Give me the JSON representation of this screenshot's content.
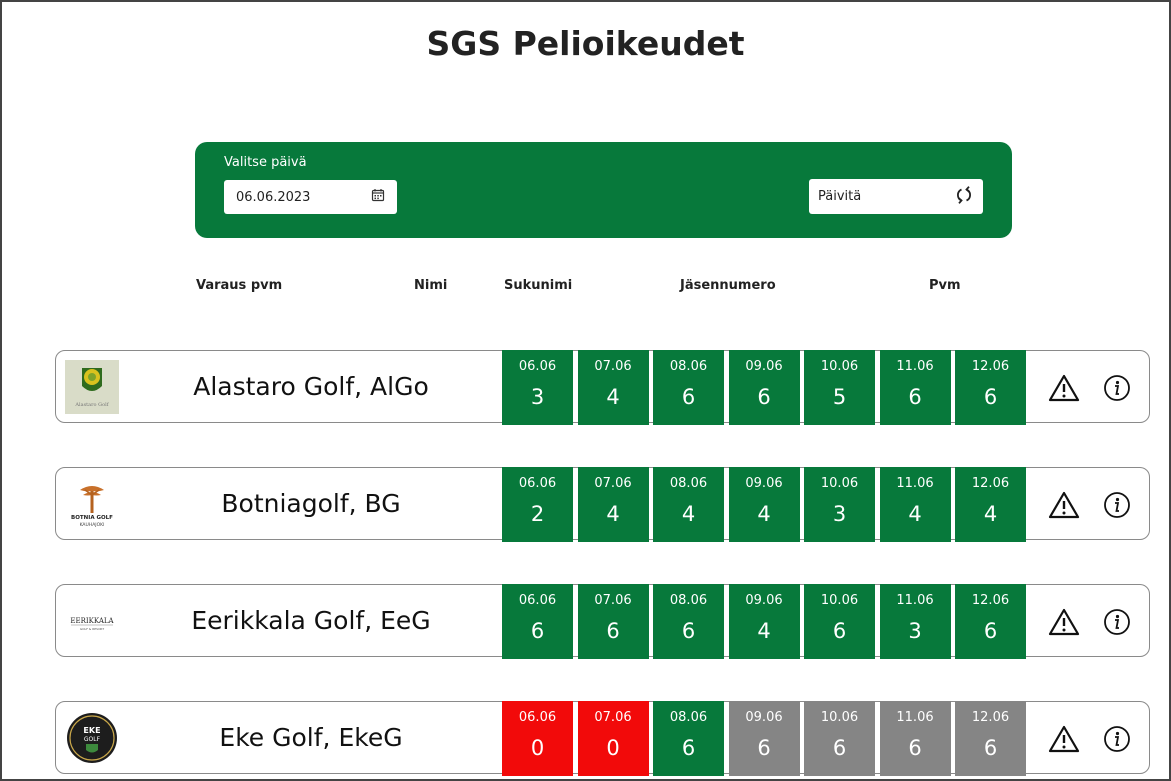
{
  "page": {
    "title": "SGS Pelioikeudet"
  },
  "controls": {
    "date_label": "Valitse päivä",
    "date_value": "06.06.2023",
    "refresh_label": "Päivitä"
  },
  "columns": [
    "Varaus pvm",
    "Nimi",
    "Sukunimi",
    "Jäsennumero",
    "Pvm"
  ],
  "clubs": [
    {
      "name": "Alastaro Golf, AlGo",
      "logo_text": "Alastaro Golf",
      "days": [
        {
          "date": "06.06",
          "count": "3",
          "status": "green"
        },
        {
          "date": "07.06",
          "count": "4",
          "status": "green"
        },
        {
          "date": "08.06",
          "count": "6",
          "status": "green"
        },
        {
          "date": "09.06",
          "count": "6",
          "status": "green"
        },
        {
          "date": "10.06",
          "count": "5",
          "status": "green"
        },
        {
          "date": "11.06",
          "count": "6",
          "status": "green"
        },
        {
          "date": "12.06",
          "count": "6",
          "status": "green"
        }
      ]
    },
    {
      "name": "Botniagolf, BG",
      "logo_text": "BOTNIA GOLF",
      "logo_subtext": "KAUHAJOKI",
      "days": [
        {
          "date": "06.06",
          "count": "2",
          "status": "green"
        },
        {
          "date": "07.06",
          "count": "4",
          "status": "green"
        },
        {
          "date": "08.06",
          "count": "4",
          "status": "green"
        },
        {
          "date": "09.06",
          "count": "4",
          "status": "green"
        },
        {
          "date": "10.06",
          "count": "3",
          "status": "green"
        },
        {
          "date": "11.06",
          "count": "4",
          "status": "green"
        },
        {
          "date": "12.06",
          "count": "4",
          "status": "green"
        }
      ]
    },
    {
      "name": "Eerikkala Golf, EeG",
      "logo_text": "EERIKKALA",
      "logo_subtext": "GOLF & RESORT",
      "days": [
        {
          "date": "06.06",
          "count": "6",
          "status": "green"
        },
        {
          "date": "07.06",
          "count": "6",
          "status": "green"
        },
        {
          "date": "08.06",
          "count": "6",
          "status": "green"
        },
        {
          "date": "09.06",
          "count": "4",
          "status": "green"
        },
        {
          "date": "10.06",
          "count": "6",
          "status": "green"
        },
        {
          "date": "11.06",
          "count": "3",
          "status": "green"
        },
        {
          "date": "12.06",
          "count": "6",
          "status": "green"
        }
      ]
    },
    {
      "name": "Eke Golf, EkeG",
      "logo_text": "EKE",
      "logo_subtext": "GOLF",
      "days": [
        {
          "date": "06.06",
          "count": "0",
          "status": "red"
        },
        {
          "date": "07.06",
          "count": "0",
          "status": "red"
        },
        {
          "date": "08.06",
          "count": "6",
          "status": "green"
        },
        {
          "date": "09.06",
          "count": "6",
          "status": "grey"
        },
        {
          "date": "10.06",
          "count": "6",
          "status": "grey"
        },
        {
          "date": "11.06",
          "count": "6",
          "status": "grey"
        },
        {
          "date": "12.06",
          "count": "6",
          "status": "grey"
        }
      ]
    }
  ],
  "icons": {
    "calendar": "calendar-icon",
    "refresh": "refresh-icon",
    "warning": "warning-icon",
    "info": "info-icon"
  },
  "colors": {
    "brand_green": "#07793b",
    "unavailable_red": "#f20a0a",
    "past_grey": "#858585"
  }
}
